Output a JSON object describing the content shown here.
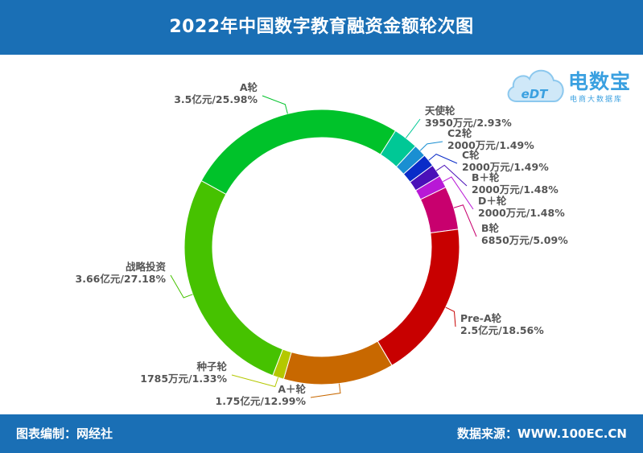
{
  "header": {
    "title": "2022年中国数字教育融资金额轮次图"
  },
  "footer": {
    "left": "图表编制：网经社",
    "right": "数据来源：WWW.100EC.CN"
  },
  "logo": {
    "title": "电数宝",
    "subtitle": "电商大数据库",
    "mark": "eDT",
    "color": "#3aa0e0"
  },
  "chart_data": {
    "type": "pie",
    "variant": "donut",
    "title": "2022年中国数字教育融资金额轮次图",
    "slices": [
      {
        "name": "A轮",
        "amount": "3.5亿元",
        "percent": 25.98,
        "label": "3.5亿元/25.98%",
        "color": "#00c22a"
      },
      {
        "name": "天使轮",
        "amount": "3950万元",
        "percent": 2.93,
        "label": "3950万元/2.93%",
        "color": "#00c896"
      },
      {
        "name": "C2轮",
        "amount": "2000万元",
        "percent": 1.49,
        "label": "2000万元/1.49%",
        "color": "#1a8fd2"
      },
      {
        "name": "C轮",
        "amount": "2000万元",
        "percent": 1.49,
        "label": "2000万元/1.49%",
        "color": "#0a2cc8"
      },
      {
        "name": "B＋轮",
        "amount": "2000万元",
        "percent": 1.48,
        "label": "2000万元/1.48%",
        "color": "#4a10b8"
      },
      {
        "name": "D＋轮",
        "amount": "2000万元",
        "percent": 1.48,
        "label": "2000万元/1.48%",
        "color": "#b818d6"
      },
      {
        "name": "B轮",
        "amount": "6850万元",
        "percent": 5.09,
        "label": "6850万元/5.09%",
        "color": "#c8006e"
      },
      {
        "name": "Pre-A轮",
        "amount": "2.5亿元",
        "percent": 18.56,
        "label": "2.5亿元/18.56%",
        "color": "#c80000"
      },
      {
        "name": "A＋轮",
        "amount": "1.75亿元",
        "percent": 12.99,
        "label": "1.75亿元/12.99%",
        "color": "#c86800"
      },
      {
        "name": "种子轮",
        "amount": "1785万元",
        "percent": 1.33,
        "label": "1785万元/1.33%",
        "color": "#b4c800"
      },
      {
        "name": "战略投资",
        "amount": "3.66亿元",
        "percent": 27.18,
        "label": "3.66亿元/27.18%",
        "color": "#46c200"
      }
    ]
  }
}
